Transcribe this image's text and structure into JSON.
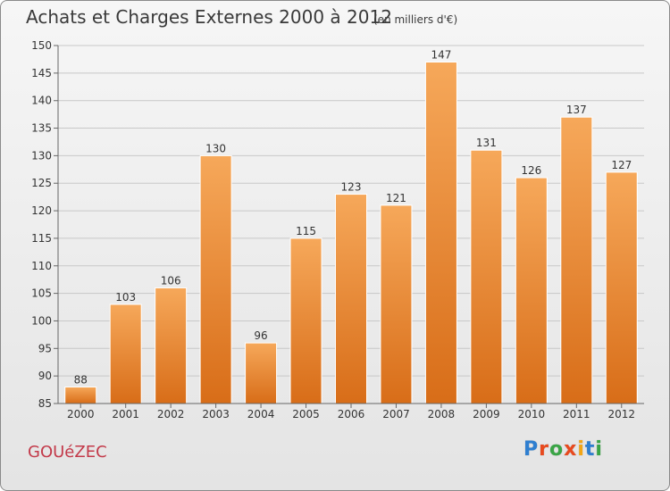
{
  "header": {
    "title": "Achats et Charges Externes 2000 à 2012",
    "subtitle": "(en milliers d'€)"
  },
  "footer": {
    "town": "GOUéZEC",
    "brand_letters": [
      "P",
      "r",
      "o",
      "x",
      "i",
      "t",
      "i"
    ],
    "brand_colors": [
      "#2f7fd0",
      "#e84a1e",
      "#3aa546",
      "#e84a1e",
      "#f2a516",
      "#2f7fd0",
      "#3aa546"
    ]
  },
  "colors": {
    "bar_top": "#f6a85a",
    "bar_bottom": "#d86d18",
    "grid": "#c8c8c8",
    "axis": "#666666",
    "text": "#333333"
  },
  "chart_data": {
    "type": "bar",
    "categories": [
      "2000",
      "2001",
      "2002",
      "2003",
      "2004",
      "2005",
      "2006",
      "2007",
      "2008",
      "2009",
      "2010",
      "2011",
      "2012"
    ],
    "values": [
      88,
      103,
      106,
      130,
      96,
      115,
      123,
      121,
      147,
      131,
      126,
      137,
      127
    ],
    "data_labels": [
      "88",
      "103",
      "106",
      "130",
      "96",
      "115",
      "123",
      "121",
      "147",
      "131",
      "126",
      "137",
      "127"
    ],
    "title": "Achats et Charges Externes 2000 à 2012",
    "xlabel": "",
    "ylabel": "",
    "ylim": [
      85,
      150
    ],
    "yticks": [
      85,
      90,
      95,
      100,
      105,
      110,
      115,
      120,
      125,
      130,
      135,
      140,
      145,
      150
    ],
    "grid": true
  }
}
